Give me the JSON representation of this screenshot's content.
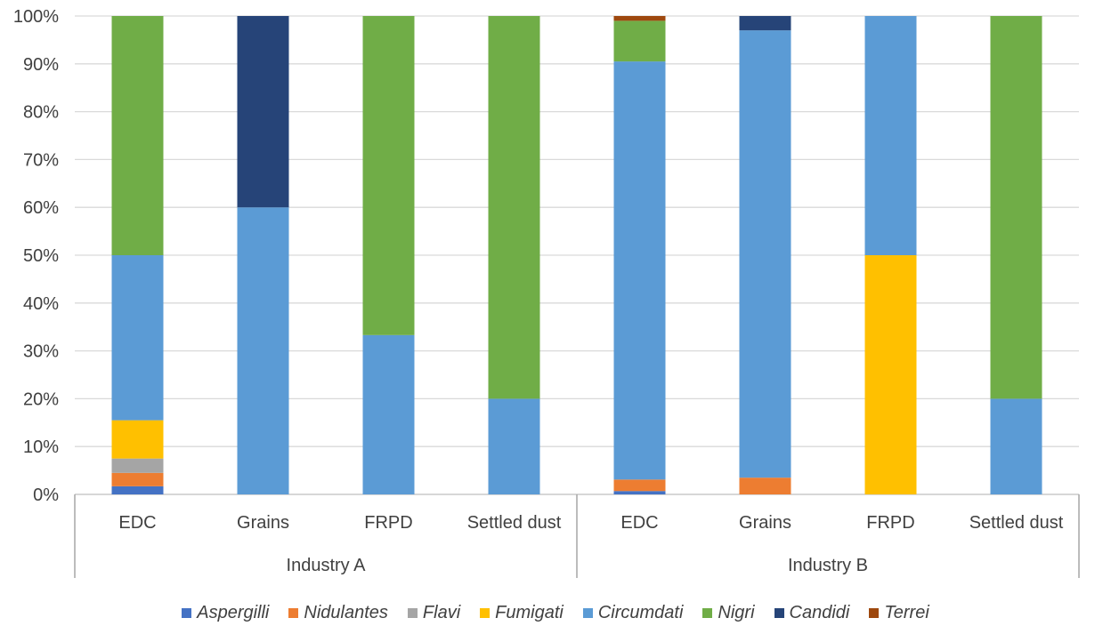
{
  "chart_data": {
    "type": "bar",
    "stacked": true,
    "percent_stacked": true,
    "y_ticks": [
      "0%",
      "10%",
      "20%",
      "30%",
      "40%",
      "50%",
      "60%",
      "70%",
      "80%",
      "90%",
      "100%"
    ],
    "ylim": [
      0,
      100
    ],
    "grid": true,
    "legend_position": "bottom",
    "groups": [
      {
        "label": "Industry A",
        "categories": [
          "EDC",
          "Grains",
          "FRPD",
          "Settled dust"
        ]
      },
      {
        "label": "Industry  B",
        "categories": [
          "EDC",
          "Grains",
          "FRPD",
          "Settled dust"
        ]
      }
    ],
    "series": [
      {
        "name": "Aspergilli",
        "color": "#4472c4",
        "values": [
          1.7,
          0,
          0,
          0,
          0.7,
          0,
          0,
          0
        ]
      },
      {
        "name": "Nidulantes",
        "color": "#ed7d31",
        "values": [
          2.8,
          0,
          0,
          0,
          2.4,
          3.5,
          0,
          0
        ]
      },
      {
        "name": "Flavi",
        "color": "#a5a5a5",
        "values": [
          3,
          0,
          0,
          0,
          0,
          0,
          0,
          0
        ]
      },
      {
        "name": "Fumigati",
        "color": "#ffc000",
        "values": [
          8,
          0,
          0,
          0,
          0,
          0,
          50,
          0
        ]
      },
      {
        "name": "Circumdati",
        "color": "#5b9bd5",
        "values": [
          34.5,
          60,
          33.3,
          20,
          87.4,
          93.5,
          50,
          20
        ]
      },
      {
        "name": "Nigri",
        "color": "#70ad47",
        "values": [
          50,
          0,
          66.7,
          80,
          8.5,
          0,
          0,
          80
        ]
      },
      {
        "name": "Candidi",
        "color": "#264478",
        "values": [
          0,
          40,
          0,
          0,
          0,
          3,
          0,
          0
        ]
      },
      {
        "name": "Terrei",
        "color": "#9e480e",
        "values": [
          0,
          0,
          0,
          0,
          1,
          0,
          0,
          0
        ]
      }
    ]
  }
}
